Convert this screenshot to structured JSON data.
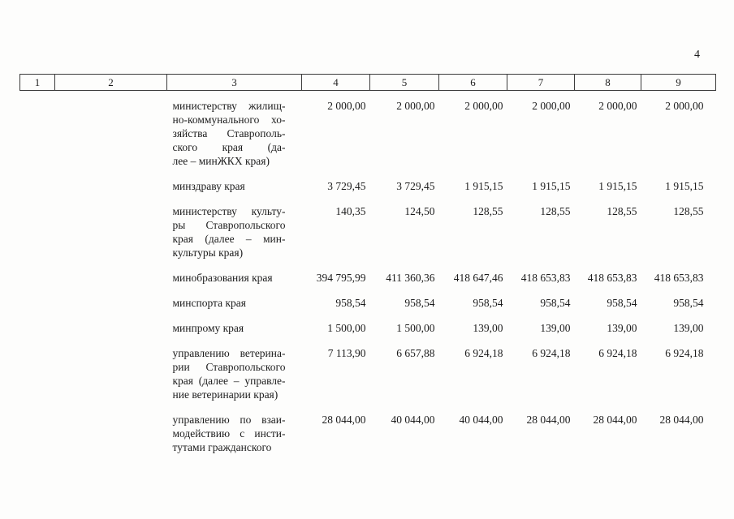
{
  "page": {
    "number": "4"
  },
  "table": {
    "header": [
      "1",
      "2",
      "3",
      "4",
      "5",
      "6",
      "7",
      "8",
      "9"
    ],
    "rows": [
      {
        "lines": [
          "министерству жилищ-",
          "но-коммунального хо-",
          "зяйства Ставрополь-",
          "ского края (да-",
          "лее – минЖКХ края)"
        ],
        "values": [
          "2 000,00",
          "2 000,00",
          "2 000,00",
          "2 000,00",
          "2 000,00",
          "2 000,00"
        ]
      },
      {
        "lines": [
          "минздраву края"
        ],
        "values": [
          "3 729,45",
          "3 729,45",
          "1 915,15",
          "1 915,15",
          "1 915,15",
          "1 915,15"
        ]
      },
      {
        "lines": [
          "министерству культу-",
          "ры Ставропольского",
          "края (далее – мин-",
          "культуры края)"
        ],
        "values": [
          "140,35",
          "124,50",
          "128,55",
          "128,55",
          "128,55",
          "128,55"
        ]
      },
      {
        "lines": [
          "минобразования края"
        ],
        "values": [
          "394 795,99",
          "411 360,36",
          "418 647,46",
          "418 653,83",
          "418 653,83",
          "418 653,83"
        ]
      },
      {
        "lines": [
          "минспорта края"
        ],
        "values": [
          "958,54",
          "958,54",
          "958,54",
          "958,54",
          "958,54",
          "958,54"
        ]
      },
      {
        "lines": [
          "минпрому края"
        ],
        "values": [
          "1 500,00",
          "1 500,00",
          "139,00",
          "139,00",
          "139,00",
          "139,00"
        ]
      },
      {
        "lines": [
          "управлению ветерина-",
          "рии Ставропольского",
          "края (далее – управле-",
          "ние ветеринарии края)"
        ],
        "values": [
          "7 113,90",
          "6 657,88",
          "6 924,18",
          "6 924,18",
          "6 924,18",
          "6 924,18"
        ]
      },
      {
        "lines": [
          "управлению по взаи-",
          "модействию с инсти-",
          "тутами гражданского"
        ],
        "values": [
          "28 044,00",
          "40 044,00",
          "40 044,00",
          "28 044,00",
          "28 044,00",
          "28 044,00"
        ]
      }
    ]
  }
}
